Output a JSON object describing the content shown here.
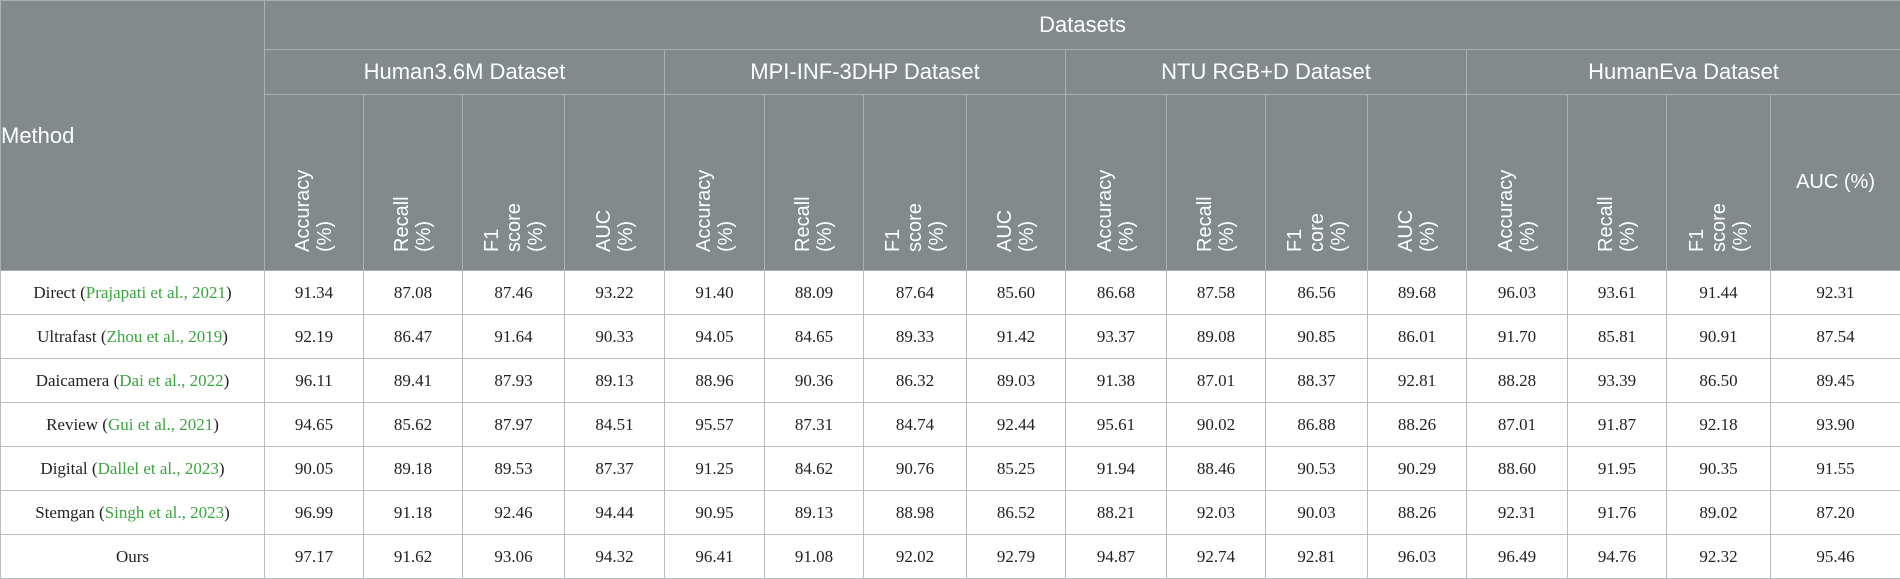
{
  "header": {
    "method": "Method",
    "datasets": "Datasets",
    "groups": [
      {
        "name": "Human3.6M Dataset",
        "metrics": [
          "Accuracy\n(%)",
          "Recall (%)",
          "F1\nscore\n(%)",
          "AUC (%)"
        ]
      },
      {
        "name": "MPI-INF-3DHP Dataset",
        "metrics": [
          "Accuracy\n(%)",
          "Recall (%)",
          "F1\nscore\n(%)",
          "AUC (%)"
        ]
      },
      {
        "name": "NTU RGB+D Dataset",
        "metrics": [
          "Accuracy\n(%)",
          "Recall (%)",
          "F1\ncore\n(%)",
          "AUC (%)"
        ]
      },
      {
        "name": "HumanEva Dataset",
        "metrics": [
          "Accuracy\n(%)",
          "Recall (%)",
          "F1\nscore\n(%)",
          "AUC (%)"
        ]
      }
    ]
  },
  "rows": [
    {
      "method": "Direct",
      "cite": "Prajapati et al., 2021",
      "values": [
        "91.34",
        "87.08",
        "87.46",
        "93.22",
        "91.40",
        "88.09",
        "87.64",
        "85.60",
        "86.68",
        "87.58",
        "86.56",
        "89.68",
        "96.03",
        "93.61",
        "91.44",
        "92.31"
      ]
    },
    {
      "method": "Ultrafast",
      "cite": "Zhou et al., 2019",
      "values": [
        "92.19",
        "86.47",
        "91.64",
        "90.33",
        "94.05",
        "84.65",
        "89.33",
        "91.42",
        "93.37",
        "89.08",
        "90.85",
        "86.01",
        "91.70",
        "85.81",
        "90.91",
        "87.54"
      ]
    },
    {
      "method": "Daicamera",
      "cite": "Dai et al., 2022",
      "values": [
        "96.11",
        "89.41",
        "87.93",
        "89.13",
        "88.96",
        "90.36",
        "86.32",
        "89.03",
        "91.38",
        "87.01",
        "88.37",
        "92.81",
        "88.28",
        "93.39",
        "86.50",
        "89.45"
      ]
    },
    {
      "method": "Review",
      "cite": "Gui et al., 2021",
      "values": [
        "94.65",
        "85.62",
        "87.97",
        "84.51",
        "95.57",
        "87.31",
        "84.74",
        "92.44",
        "95.61",
        "90.02",
        "86.88",
        "88.26",
        "87.01",
        "91.87",
        "92.18",
        "93.90"
      ]
    },
    {
      "method": "Digital",
      "cite": "Dallel et al., 2023",
      "values": [
        "90.05",
        "89.18",
        "89.53",
        "87.37",
        "91.25",
        "84.62",
        "90.76",
        "85.25",
        "91.94",
        "88.46",
        "90.53",
        "90.29",
        "88.60",
        "91.95",
        "90.35",
        "91.55"
      ]
    },
    {
      "method": "Stemgan",
      "cite": "Singh et al., 2023",
      "values": [
        "96.99",
        "91.18",
        "92.46",
        "94.44",
        "90.95",
        "89.13",
        "88.98",
        "86.52",
        "88.21",
        "92.03",
        "90.03",
        "88.26",
        "92.31",
        "91.76",
        "89.02",
        "87.20"
      ]
    },
    {
      "method": "Ours",
      "cite": "",
      "values": [
        "97.17",
        "91.62",
        "93.06",
        "94.32",
        "96.41",
        "91.08",
        "92.02",
        "92.79",
        "94.87",
        "92.74",
        "92.81",
        "96.03",
        "96.49",
        "94.76",
        "92.32",
        "95.46"
      ]
    }
  ]
}
